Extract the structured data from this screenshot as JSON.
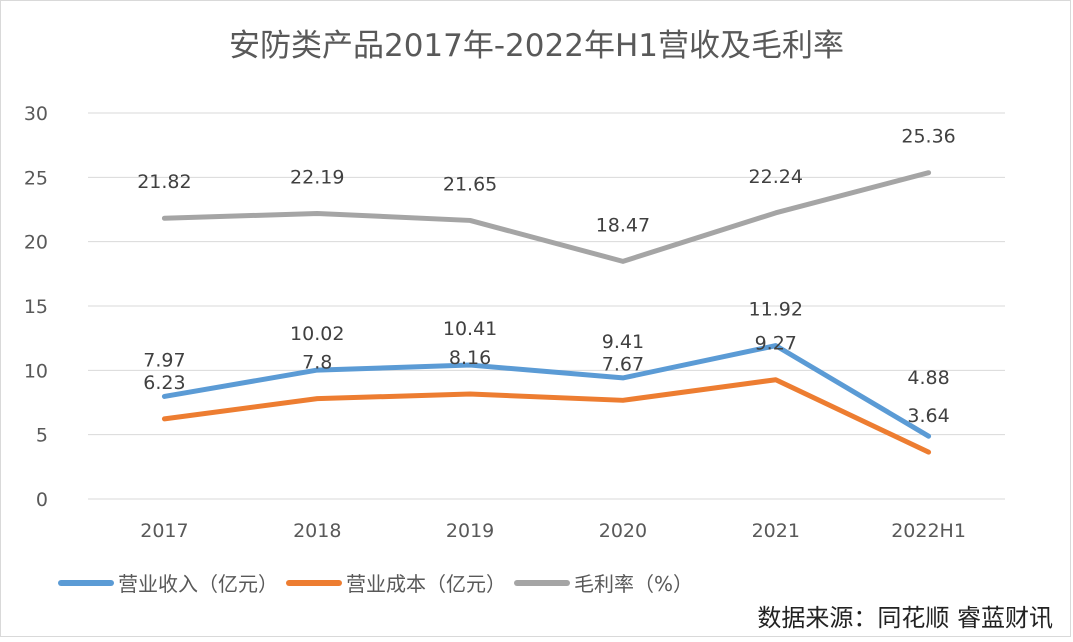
{
  "chart_data": {
    "type": "line",
    "title": "安防类产品2017年-2022年H1营收及毛利率",
    "categories": [
      "2017",
      "2018",
      "2019",
      "2020",
      "2021",
      "2022H1"
    ],
    "ylim": [
      0,
      30
    ],
    "yticks": [
      0,
      5,
      10,
      15,
      20,
      25,
      30
    ],
    "grid": true,
    "legend_position": "bottom",
    "series": [
      {
        "name": "营业收入（亿元）",
        "color": "#5B9BD5",
        "values": [
          7.97,
          10.02,
          10.41,
          9.41,
          11.92,
          4.88
        ]
      },
      {
        "name": "营业成本（亿元）",
        "color": "#ED7D31",
        "values": [
          6.23,
          7.8,
          8.16,
          7.67,
          9.27,
          3.64
        ]
      },
      {
        "name": "毛利率（%）",
        "color": "#A5A5A5",
        "values": [
          21.82,
          22.19,
          21.65,
          18.47,
          22.24,
          25.36
        ]
      }
    ]
  },
  "source": "数据来源：同花顺 睿蓝财讯"
}
